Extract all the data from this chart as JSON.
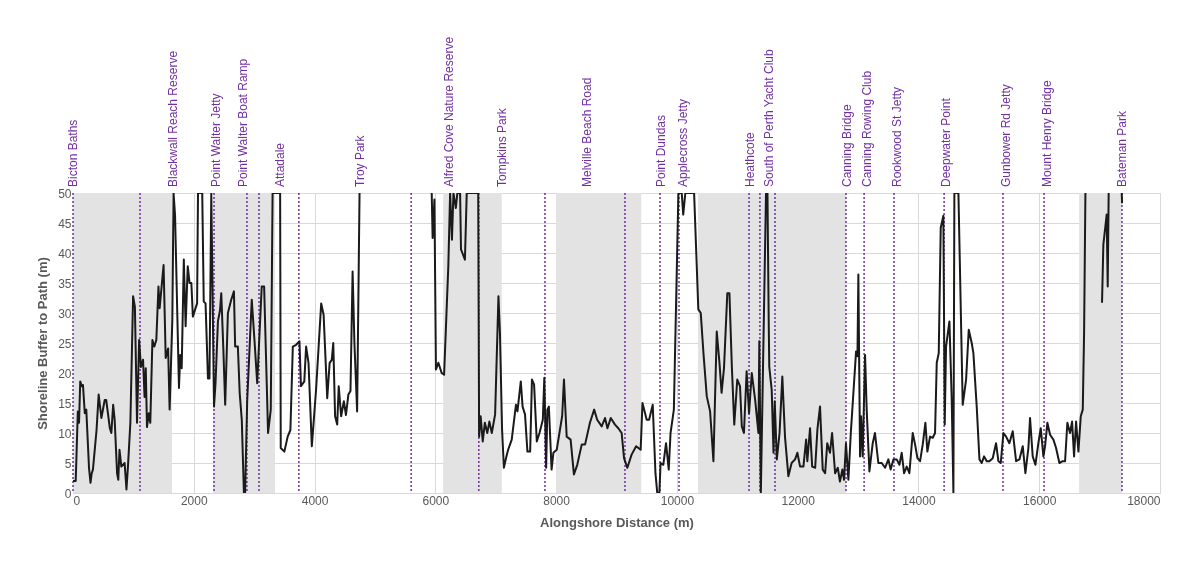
{
  "chart_data": {
    "type": "line",
    "xlabel": "Alongshore Distance (m)",
    "ylabel": "Shoreline Buffer to Path (m)",
    "xlim": [
      0,
      18000
    ],
    "xticks": [
      0,
      2000,
      4000,
      6000,
      8000,
      10000,
      12000,
      14000,
      16000,
      18000
    ],
    "ylim": [
      0,
      50
    ],
    "yticks": [
      0,
      5,
      10,
      15,
      20,
      25,
      30,
      35,
      40,
      45,
      50
    ],
    "grid": true,
    "marker": "none",
    "line_style": "solid",
    "series": [
      {
        "color": "#1a1a1a",
        "x": [
          0,
          45,
          80,
          100,
          120,
          145,
          165,
          195,
          220,
          265,
          290,
          310,
          330,
          390,
          425,
          470,
          525,
          550,
          610,
          635,
          665,
          690,
          730,
          750,
          770,
          800,
          855,
          885,
          910,
          950,
          995,
          1025,
          1060,
          1095,
          1125,
          1160,
          1185,
          1205,
          1225,
          1255,
          1280,
          1315,
          1345,
          1380,
          1415,
          1435,
          1500,
          1535,
          1575,
          1600,
          1645,
          1665,
          1690,
          1755,
          1775,
          1800,
          1835,
          1865,
          1900,
          1930,
          1960,
          1985,
          2055,
          2070,
          2140,
          2165,
          2195,
          2235,
          2260,
          2290,
          2335,
          2360,
          2400,
          2435,
          2455,
          2490,
          2520,
          2565,
          2620,
          2665,
          2685,
          2730,
          2760,
          2795,
          2830,
          2850,
          2885,
          2960,
          3005,
          3050,
          3125,
          3165,
          3230,
          3275,
          3305,
          3430,
          3440,
          3500,
          3555,
          3600,
          3640,
          3695,
          3750,
          3775,
          3830,
          3860,
          3900,
          3955,
          4025,
          4110,
          4150,
          4210,
          4250,
          4285,
          4310,
          4340,
          4375,
          4400,
          4440,
          4485,
          4520,
          4560,
          4595,
          4630,
          4660,
          4705,
          4745,
          5300,
          5940,
          5955,
          5985,
          6010,
          6050,
          6105,
          6145,
          6215,
          6245,
          6275,
          6300,
          6340,
          6365,
          6410,
          6425,
          6490,
          6520,
          6710,
          6725,
          6750,
          6785,
          6820,
          6860,
          6895,
          6935,
          6990,
          7045,
          7070,
          7105,
          7135,
          7170,
          7205,
          7265,
          7335,
          7360,
          7415,
          7445,
          7485,
          7525,
          7570,
          7600,
          7635,
          7680,
          7725,
          7780,
          7805,
          7835,
          7855,
          7880,
          7925,
          7955,
          8010,
          8055,
          8100,
          8130,
          8175,
          8240,
          8295,
          8350,
          8425,
          8480,
          8560,
          8630,
          8680,
          8755,
          8810,
          8850,
          8905,
          8975,
          9030,
          9085,
          9125,
          9180,
          9250,
          9325,
          9400,
          9430,
          9500,
          9540,
          9600,
          9645,
          9675,
          9710,
          9730,
          9775,
          9820,
          9865,
          9895,
          9950,
          10025,
          10080,
          10105,
          10140,
          10285,
          10355,
          10395,
          10440,
          10495,
          10550,
          10605,
          10660,
          10705,
          10740,
          10780,
          10835,
          10870,
          10910,
          10950,
          11000,
          11045,
          11075,
          11110,
          11155,
          11195,
          11240,
          11295,
          11350,
          11365,
          11390,
          11476,
          11500,
          11520,
          11530,
          11570,
          11600,
          11620,
          11655,
          11700,
          11746,
          11790,
          11846,
          11900,
          11957,
          11995,
          12040,
          12095,
          12140,
          12160,
          12205,
          12240,
          12290,
          12327,
          12370,
          12415,
          12455,
          12490,
          12535,
          12570,
          12620,
          12665,
          12700,
          12740,
          12768,
          12800,
          12840,
          12880,
          12923,
          12967,
          12990,
          13005,
          13033,
          13050,
          13077,
          13116,
          13143,
          13188,
          13243,
          13280,
          13336,
          13392,
          13447,
          13502,
          13540,
          13585,
          13640,
          13685,
          13723,
          13762,
          13806,
          13850,
          13905,
          13944,
          13983,
          14027,
          14071,
          14115,
          14148,
          14192,
          14237,
          14275,
          14303,
          14336,
          14369,
          14413,
          14435,
          14457,
          14513,
          14551,
          14579,
          14595,
          14662,
          14733,
          14789,
          14833,
          14882,
          14910,
          14965,
          15010,
          15048,
          15087,
          15131,
          15175,
          15230,
          15285,
          15324,
          15363,
          15407,
          15451,
          15506,
          15561,
          15617,
          15672,
          15727,
          15771,
          15821,
          15848,
          15892,
          15937,
          15986,
          16025,
          16069,
          16097,
          16135,
          16180,
          16235,
          16279,
          16334,
          16389,
          16428,
          16466,
          16510,
          16544,
          16577,
          16610,
          16649,
          16688,
          16721,
          16743,
          16765,
          16900,
          17040,
          17062,
          17117,
          17134,
          17150,
          17260,
          17366,
          17372
        ],
        "values": [
          2,
          2,
          13.6,
          11.7,
          18.6,
          17.8,
          18,
          13.3,
          13.9,
          4.2,
          1.7,
          3.3,
          3.9,
          10.5,
          16.4,
          12.5,
          15.5,
          15.5,
          10.8,
          10,
          14.7,
          12.2,
          3.3,
          2.2,
          7.2,
          4.4,
          5,
          0.6,
          4.4,
          11.7,
          32.8,
          31,
          11.7,
          25.5,
          21,
          22.2,
          16,
          20.8,
          11,
          13.3,
          11.7,
          25.5,
          24.4,
          25.5,
          34.4,
          30.8,
          38,
          22.5,
          24.1,
          13.9,
          28.9,
          50,
          46.3,
          17.5,
          23,
          20.8,
          38.9,
          27.8,
          37.8,
          35,
          35,
          29.4,
          31.6,
          50,
          50,
          31.9,
          31.6,
          19.1,
          19.1,
          50,
          14.4,
          18.3,
          28.6,
          30.5,
          33.3,
          23.9,
          14.7,
          30,
          32.2,
          33.6,
          24.4,
          24.4,
          16.7,
          12.2,
          0,
          0,
          15.5,
          32.2,
          25.5,
          18.3,
          34.4,
          34.4,
          10,
          13.9,
          50,
          50,
          7.5,
          6.9,
          9.4,
          10.5,
          24.4,
          24.7,
          25.3,
          17.8,
          18.6,
          24.4,
          21.7,
          7.8,
          17.2,
          31.6,
          29.7,
          15.8,
          21.7,
          22.2,
          25,
          12.8,
          11.4,
          17.8,
          12.8,
          15.3,
          13,
          16.4,
          17,
          36.9,
          25,
          13.6,
          50,
          null,
          50,
          42.5,
          48.9,
          20.6,
          21.7,
          20,
          19.7,
          37.8,
          50,
          42.2,
          50,
          47.5,
          50,
          50,
          40.6,
          38.9,
          50,
          50,
          9.4,
          12.8,
          8.6,
          11.7,
          10,
          11.9,
          10,
          13.1,
          32.8,
          26.7,
          10.6,
          4.2,
          5.8,
          7.2,
          8.9,
          14.7,
          13.6,
          18.6,
          14.4,
          13.1,
          6.9,
          6.9,
          18.9,
          18.1,
          8.6,
          10,
          12.2,
          19.2,
          4.2,
          13.9,
          14.4,
          3.9,
          6.7,
          7.2,
          10,
          12.8,
          18.9,
          9.4,
          8.9,
          3.1,
          4.7,
          8.1,
          8.1,
          11.7,
          13.9,
          12.2,
          11.1,
          12.5,
          10.8,
          12.5,
          11.4,
          10.8,
          10,
          5.8,
          4.2,
          6.4,
          7.8,
          7.2,
          15,
          12.2,
          12.2,
          14.7,
          3.3,
          0,
          0,
          5,
          4.7,
          8.3,
          3.9,
          10,
          13.9,
          50,
          50,
          46.4,
          50,
          50,
          30.6,
          30,
          23.3,
          16.1,
          13.6,
          5.3,
          26.9,
          21.7,
          16.7,
          20.8,
          33.3,
          33.3,
          21.1,
          11.4,
          18.9,
          17.8,
          11.1,
          10,
          20.3,
          13.3,
          20,
          15.6,
          10,
          25.3,
          0,
          50,
          50,
          29,
          21,
          17.2,
          6.7,
          15.3,
          5.6,
          10,
          19.4,
          9.4,
          2.8,
          5,
          5.6,
          6.7,
          4.4,
          4.4,
          8.9,
          5.3,
          10.8,
          4.4,
          4.2,
          10.6,
          14.4,
          3.9,
          3.3,
          8.3,
          6.7,
          10,
          3.3,
          4.2,
          1.9,
          3.9,
          2.2,
          8.3,
          2.2,
          10,
          16.7,
          23.6,
          22.8,
          36.4,
          6.1,
          12.8,
          6.1,
          23,
          13.9,
          3.6,
          8.3,
          10,
          5,
          5,
          4.2,
          5.6,
          3.9,
          5.6,
          5.6,
          4.7,
          6.7,
          3.3,
          4.4,
          3.3,
          10,
          8.1,
          5.8,
          5.3,
          8.1,
          11.7,
          6.9,
          9.4,
          9.2,
          10,
          21.7,
          23.3,
          44.2,
          46.2,
          11.4,
          24.4,
          28.6,
          15.6,
          0,
          50,
          50,
          14.7,
          18.9,
          27.2,
          25,
          23.3,
          14.4,
          5.6,
          5,
          6.1,
          5.3,
          5.3,
          5.8,
          8.3,
          5.3,
          5,
          10,
          9.4,
          8.3,
          10.3,
          5.3,
          5.6,
          7.8,
          3.3,
          7.5,
          12.5,
          6.1,
          4.7,
          8.3,
          10.8,
          6.1,
          7.8,
          11.7,
          9.7,
          8.9,
          7.5,
          5,
          5.3,
          5.3,
          11.7,
          10,
          11.9,
          6.1,
          11.9,
          6.9,
          12.8,
          13.9,
          26.7,
          50,
          null,
          31.7,
          41.4,
          46.4,
          34.4,
          50,
          null,
          50,
          48.3
        ]
      }
    ],
    "ref_lines": [
      {
        "axis": "x",
        "value": 0,
        "color": "#7030a0",
        "line_style": "dotted"
      },
      {
        "axis": "x",
        "value": 1110,
        "color": "#7030a0",
        "line_style": "dotted"
      },
      {
        "axis": "x",
        "value": 2335,
        "color": "#7030a0",
        "line_style": "dotted"
      },
      {
        "axis": "x",
        "value": 2880,
        "color": "#7030a0",
        "line_style": "dotted"
      },
      {
        "axis": "x",
        "value": 3080,
        "color": "#7030a0",
        "line_style": "dotted"
      },
      {
        "axis": "x",
        "value": 3740,
        "color": "#7030a0",
        "line_style": "dotted"
      },
      {
        "axis": "x",
        "value": 5600,
        "color": "#7030a0",
        "line_style": "dotted"
      },
      {
        "axis": "x",
        "value": 6720,
        "color": "#7030a0",
        "line_style": "dotted"
      },
      {
        "axis": "x",
        "value": 7815,
        "color": "#7030a0",
        "line_style": "dotted"
      },
      {
        "axis": "x",
        "value": 9140,
        "color": "#7030a0",
        "line_style": "dotted"
      },
      {
        "axis": "x",
        "value": 9720,
        "color": "#7030a0",
        "line_style": "dotted"
      },
      {
        "axis": "x",
        "value": 10035,
        "color": "#7030a0",
        "line_style": "dotted"
      },
      {
        "axis": "x",
        "value": 11195,
        "color": "#7030a0",
        "line_style": "dotted"
      },
      {
        "axis": "x",
        "value": 11375,
        "color": "#7030a0",
        "line_style": "dotted"
      },
      {
        "axis": "x",
        "value": 11625,
        "color": "#7030a0",
        "line_style": "dotted"
      },
      {
        "axis": "x",
        "value": 12800,
        "color": "#7030a0",
        "line_style": "dotted"
      },
      {
        "axis": "x",
        "value": 13100,
        "color": "#7030a0",
        "line_style": "dotted"
      },
      {
        "axis": "x",
        "value": 13595,
        "color": "#7030a0",
        "line_style": "dotted"
      },
      {
        "axis": "x",
        "value": 14425,
        "color": "#7030a0",
        "line_style": "dotted"
      },
      {
        "axis": "x",
        "value": 15400,
        "color": "#7030a0",
        "line_style": "dotted"
      },
      {
        "axis": "x",
        "value": 16080,
        "color": "#7030a0",
        "line_style": "dotted"
      },
      {
        "axis": "x",
        "value": 17370,
        "color": "#7030a0",
        "line_style": "dotted"
      }
    ],
    "bands": [
      {
        "axis": "x",
        "from": 0,
        "to": 1640,
        "color": "#e3e3e3"
      },
      {
        "axis": "x",
        "from": 2320,
        "to": 3345,
        "color": "#e3e3e3"
      },
      {
        "axis": "x",
        "from": 6130,
        "to": 7100,
        "color": "#e3e3e3"
      },
      {
        "axis": "x",
        "from": 8000,
        "to": 9410,
        "color": "#e3e3e3"
      },
      {
        "axis": "x",
        "from": 10350,
        "to": 12800,
        "color": "#e3e3e3"
      },
      {
        "axis": "x",
        "from": 16660,
        "to": 17370,
        "color": "#e3e3e3"
      }
    ],
    "annotations": [
      {
        "text": "Bicton Baths",
        "x": 0,
        "y": 50
      },
      {
        "text": "Blackwall Reach Reserve",
        "x": 1650,
        "y": 50
      },
      {
        "text": "Point Walter Jetty",
        "x": 2365,
        "y": 50
      },
      {
        "text": "Point Walter Boat Ramp",
        "x": 2815,
        "y": 50
      },
      {
        "text": "Attadale",
        "x": 3430,
        "y": 50
      },
      {
        "text": "Troy Park",
        "x": 4745,
        "y": 50
      },
      {
        "text": "Alfred Cove Nature Reserve",
        "x": 6230,
        "y": 50
      },
      {
        "text": "Tompkins Park",
        "x": 7100,
        "y": 50
      },
      {
        "text": "Melville Beach Road",
        "x": 8510,
        "y": 50
      },
      {
        "text": "Point Dundas",
        "x": 9740,
        "y": 50
      },
      {
        "text": "Applecross Jetty",
        "x": 10100,
        "y": 50
      },
      {
        "text": "Heathcote",
        "x": 11210,
        "y": 50
      },
      {
        "text": "South of Perth Yacht Club",
        "x": 11530,
        "y": 50
      },
      {
        "text": "Canning Bridge",
        "x": 12820,
        "y": 50
      },
      {
        "text": "Canning Rowing Club",
        "x": 13150,
        "y": 50
      },
      {
        "text": "Rookwood St Jetty",
        "x": 13650,
        "y": 50
      },
      {
        "text": "Deepwater Point",
        "x": 14460,
        "y": 50
      },
      {
        "text": "Gunbower Rd Jetty",
        "x": 15450,
        "y": 50
      },
      {
        "text": "Mount Henry Bridge",
        "x": 16130,
        "y": 50
      },
      {
        "text": "Bateman Park",
        "x": 17370,
        "y": 50
      }
    ]
  }
}
